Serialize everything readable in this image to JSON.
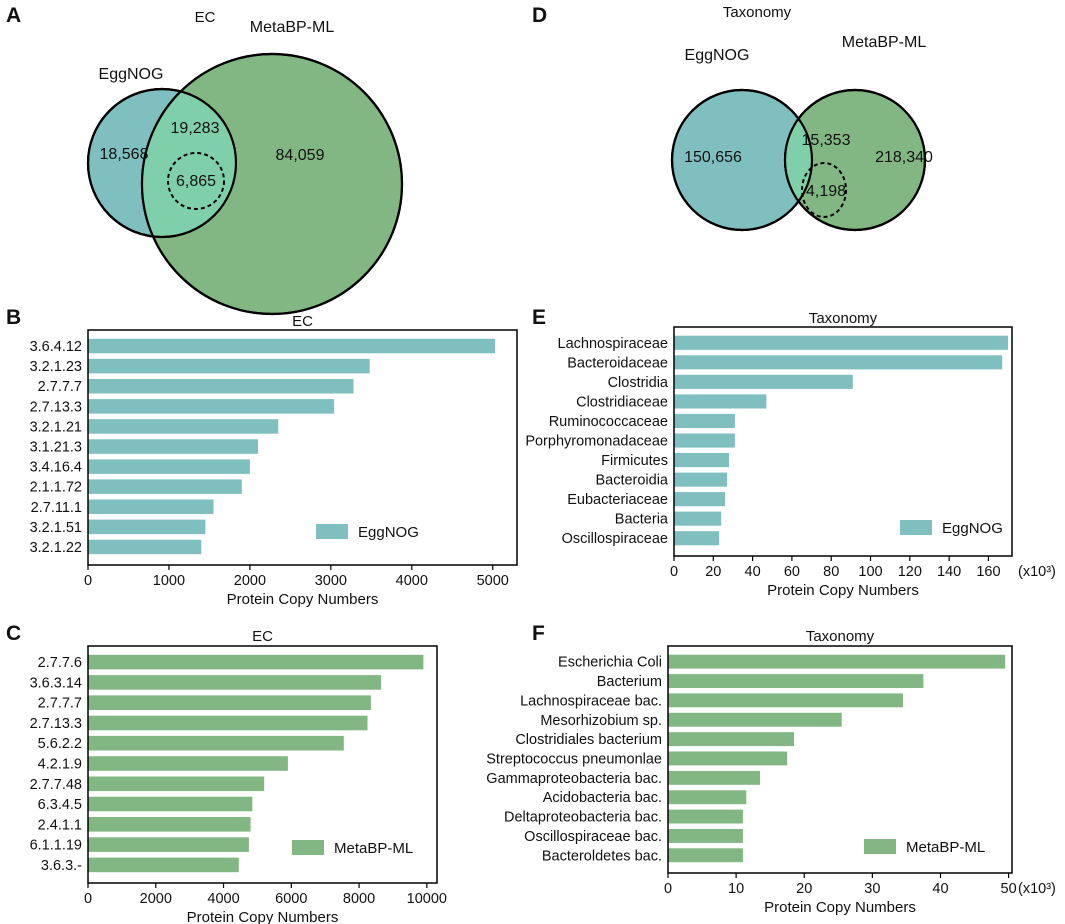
{
  "colors": {
    "eggnog": "#7fbfbf",
    "metabp": "#82b682",
    "overlap": "#7fcfaa"
  },
  "venns": [
    {
      "panel": "A",
      "title": "EC",
      "left_label": "EggNOG",
      "right_label": "MetaBP-ML",
      "left_only": "18,568",
      "intersection": "19,283",
      "inner": "6,865",
      "right_only": "84,059"
    },
    {
      "panel": "D",
      "title": "Taxonomy",
      "left_label": "EggNOG",
      "right_label": "MetaBP-ML",
      "left_only": "150,656",
      "intersection": "15,353",
      "inner": "4,198",
      "right_only": "218,340"
    }
  ],
  "chart_data": [
    {
      "panel": "B",
      "type": "bar",
      "orientation": "horizontal",
      "title": "EC",
      "categories": [
        "3.6.4.12",
        "3.2.1.23",
        "2.7.7.7",
        "2.7.13.3",
        "3.2.1.21",
        "3.1.21.3",
        "3.4.16.4",
        "2.1.1.72",
        "2.7.11.1",
        "3.2.1.51",
        "3.2.1.22"
      ],
      "values": [
        5030,
        3480,
        3280,
        3040,
        2350,
        2100,
        2000,
        1900,
        1550,
        1450,
        1400
      ],
      "series_name": "EggNOG",
      "color": "#7fbfbf",
      "xlabel": "Protein Copy Numbers",
      "xlim": [
        0,
        5300
      ],
      "xticks": [
        0,
        1000,
        2000,
        3000,
        4000,
        5000
      ],
      "xtick_labels": [
        "0",
        "1000",
        "2000",
        "3000",
        "4000",
        "5000"
      ],
      "x_unit": ""
    },
    {
      "panel": "C",
      "type": "bar",
      "orientation": "horizontal",
      "title": "EC",
      "categories": [
        "2.7.7.6",
        "3.6.3.14",
        "2.7.7.7",
        "2.7.13.3",
        "5.6.2.2",
        "4.2.1.9",
        "2.7.7.48",
        "6.3.4.5",
        "2.4.1.1",
        "6.1.1.19",
        "3.6.3.-"
      ],
      "values": [
        9900,
        8650,
        8350,
        8250,
        7550,
        5900,
        5200,
        4850,
        4800,
        4750,
        4450
      ],
      "series_name": "MetaBP-ML",
      "color": "#82b682",
      "xlabel": "Protein Copy Numbers",
      "xlim": [
        0,
        10300
      ],
      "xticks": [
        0,
        2000,
        4000,
        6000,
        8000,
        10000
      ],
      "xtick_labels": [
        "0",
        "2000",
        "4000",
        "6000",
        "8000",
        "10000"
      ],
      "x_unit": ""
    },
    {
      "panel": "E",
      "type": "bar",
      "orientation": "horizontal",
      "title": "Taxonomy",
      "categories": [
        "Lachnospiraceae",
        "Bacteroidaceae",
        "Clostridia",
        "Clostridiaceae",
        "Ruminococcaceae",
        "Porphyromonadaceae",
        "Firmicutes",
        "Bacteroidia",
        "Eubacteriaceae",
        "Bacteria",
        "Oscillospiraceae"
      ],
      "values": [
        170,
        167,
        91,
        47,
        31,
        31,
        28,
        27,
        26,
        24,
        23
      ],
      "series_name": "EggNOG",
      "color": "#7fbfbf",
      "xlabel": "Protein Copy Numbers",
      "xlim": [
        0,
        172
      ],
      "xticks": [
        0,
        20,
        40,
        60,
        80,
        100,
        120,
        140,
        160
      ],
      "xtick_labels": [
        "0",
        "20",
        "40",
        "60",
        "80",
        "100",
        "120",
        "140",
        "160"
      ],
      "x_unit": "(x10³)"
    },
    {
      "panel": "F",
      "type": "bar",
      "orientation": "horizontal",
      "title": "Taxonomy",
      "categories": [
        "Escherichia Coli",
        "Bacterium",
        "Lachnospiraceae bac.",
        "Mesorhizobium sp.",
        "Clostridiales bacterium",
        "Streptococcus pneumonlae",
        "Gammaproteobacteria bac.",
        "Acidobacteria bac.",
        "Deltaproteobacteria bac.",
        "Oscillospiraceae bac.",
        "Bacteroldetes bac."
      ],
      "values": [
        49.5,
        37.5,
        34.5,
        25.5,
        18.5,
        17.5,
        13.5,
        11.5,
        11,
        11,
        11
      ],
      "series_name": "MetaBP-ML",
      "color": "#82b682",
      "xlabel": "Protein Copy Numbers",
      "xlim": [
        0,
        50.5
      ],
      "xticks": [
        0,
        10,
        20,
        30,
        40,
        50
      ],
      "xtick_labels": [
        "0",
        "10",
        "20",
        "30",
        "40",
        "50"
      ],
      "x_unit": "(x10³)"
    }
  ]
}
